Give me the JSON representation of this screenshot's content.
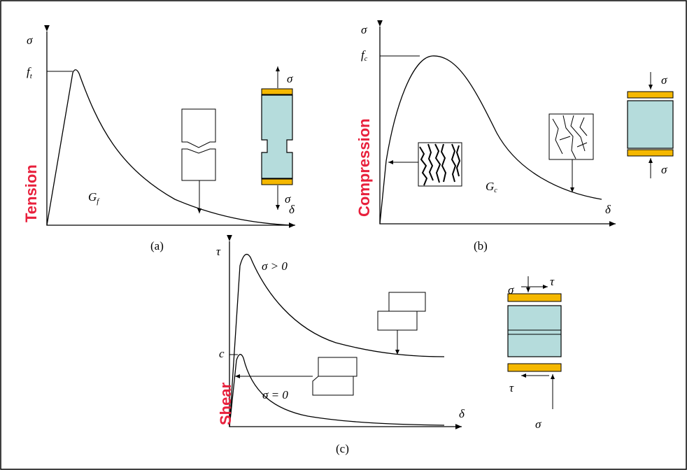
{
  "panels": [
    {
      "caption": "(a)",
      "side_label": "Tension",
      "y_axis": "σ",
      "x_axis": "δ",
      "peak": "f",
      "peak_sub": "t",
      "energy": "G",
      "energy_sub": "f",
      "load_top": "σ",
      "load_bottom": "σ"
    },
    {
      "caption": "(b)",
      "side_label": "Compression",
      "y_axis": "σ",
      "x_axis": "δ",
      "peak": "f",
      "peak_sub": "c",
      "energy": "G",
      "energy_sub": "c",
      "load_top": "σ",
      "load_bottom": "σ"
    },
    {
      "caption": "(c)",
      "side_label": "Shear",
      "y_axis": "τ",
      "x_axis": "δ",
      "peak": "c",
      "upper_curve": "σ > 0",
      "lower_curve": "σ = 0",
      "load_top": "σ",
      "shear_top": "τ",
      "shear_bottom": "τ",
      "load_bottom": "σ"
    }
  ]
}
